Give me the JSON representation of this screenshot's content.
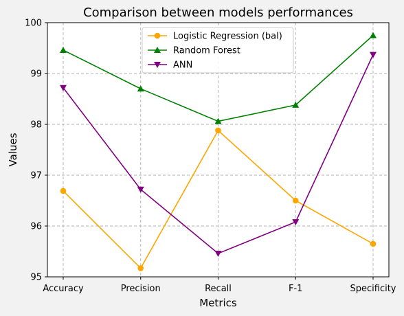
{
  "chart_data": {
    "type": "line",
    "title": "Comparison between models performances",
    "xlabel": "Metrics",
    "ylabel": "Values",
    "categories": [
      "Accuracy",
      "Precision",
      "Recall",
      "F-1",
      "Specificity"
    ],
    "ylim": [
      95,
      100
    ],
    "yticks": [
      95,
      96,
      97,
      98,
      99,
      100
    ],
    "grid": true,
    "legend_position": "top-center",
    "series": [
      {
        "name": "Logistic Regression (bal)",
        "color": "#ffa500",
        "marker": "circle",
        "values": [
          96.69,
          95.17,
          97.88,
          96.5,
          95.65
        ]
      },
      {
        "name": "Random Forest",
        "color": "#008000",
        "marker": "triangle-up",
        "values": [
          99.46,
          98.7,
          98.06,
          98.38,
          99.75
        ]
      },
      {
        "name": "ANN",
        "color": "#800080",
        "marker": "triangle-down",
        "values": [
          98.72,
          96.72,
          95.46,
          96.08,
          99.37
        ]
      }
    ]
  }
}
